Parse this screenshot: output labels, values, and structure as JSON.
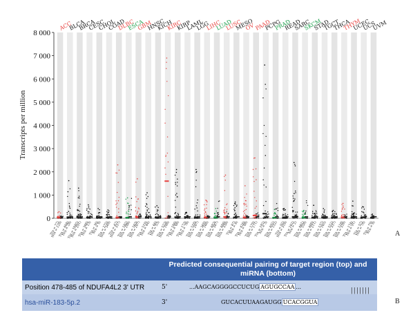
{
  "chart_data": {
    "type": "scatter",
    "title": "",
    "xlabel": "",
    "ylabel": "Transcripts per million",
    "ylim": [
      0,
      8000
    ],
    "yticks": [
      "0",
      "1 000",
      "2 000",
      "3 000",
      "4 000",
      "5 000",
      "6 000",
      "7 000",
      "8 000"
    ],
    "ytick_values": [
      0,
      1000,
      2000,
      3000,
      4000,
      5000,
      6000,
      7000,
      8000
    ],
    "grid": false,
    "colors": {
      "up": "#e8423f",
      "down": "#1a9e4a",
      "neutral": "#000000",
      "normal": "#111111"
    },
    "categories": [
      {
        "name": "ACC",
        "status": "up",
        "tumor_median": 40,
        "tumor_max": 280,
        "normal_max": 120,
        "tumor_label": "T(n = 77)",
        "normal_label": "N(n = 128)"
      },
      {
        "name": "BLCA",
        "status": "neutral",
        "tumor_median": 50,
        "tumor_max": 1620,
        "normal_max": 260,
        "tumor_label": "T(n = 404)",
        "normal_label": "N(n = 28)"
      },
      {
        "name": "BRCA",
        "status": "neutral",
        "tumor_median": 55,
        "tumor_max": 1300,
        "normal_max": 180,
        "tumor_label": "T(n = 1085)",
        "normal_label": "N(n = 291)"
      },
      {
        "name": "CESC",
        "status": "neutral",
        "tumor_median": 45,
        "tumor_max": 580,
        "normal_max": 260,
        "tumor_label": "T(n = 306)",
        "normal_label": "N(n = 13)"
      },
      {
        "name": "CHOL",
        "status": "neutral",
        "tumor_median": 30,
        "tumor_max": 420,
        "normal_max": 120,
        "tumor_label": "T(n = 36)",
        "normal_label": "N(n = 9)"
      },
      {
        "name": "COAD",
        "status": "neutral",
        "tumor_median": 40,
        "tumor_max": 360,
        "normal_max": 220,
        "tumor_label": "T(n = 275)",
        "normal_label": "N(n = 349)"
      },
      {
        "name": "DLBC",
        "status": "up",
        "tumor_median": 40,
        "tumor_max": 2300,
        "normal_max": 60,
        "tumor_label": "T(n = 47)",
        "normal_label": "N(n = 337)"
      },
      {
        "name": "ESCA",
        "status": "down",
        "tumor_median": 30,
        "tumor_max": 880,
        "normal_max": 900,
        "tumor_label": "T(n = 182)",
        "normal_label": "N(n = 286)"
      },
      {
        "name": "GBM",
        "status": "up",
        "tumor_median": 60,
        "tumor_max": 1700,
        "normal_max": 260,
        "tumor_label": "T(n = 163)",
        "normal_label": "N(n = 207)"
      },
      {
        "name": "HNSC",
        "status": "neutral",
        "tumor_median": 45,
        "tumor_max": 1100,
        "normal_max": 300,
        "tumor_label": "T(n = 519)",
        "normal_label": "N(n = 44)"
      },
      {
        "name": "KICH",
        "status": "neutral",
        "tumor_median": 40,
        "tumor_max": 540,
        "normal_max": 160,
        "tumor_label": "T(n = 66)",
        "normal_label": "N(n = 53)"
      },
      {
        "name": "KIRC",
        "status": "up",
        "tumor_median": 1600,
        "tumor_max": 6900,
        "normal_max": 140,
        "tumor_label": "T(n = 523)",
        "normal_label": "N(n = 100)"
      },
      {
        "name": "KIRP",
        "status": "neutral",
        "tumor_median": 50,
        "tumor_max": 2100,
        "normal_max": 180,
        "tumor_label": "T(n = 286)",
        "normal_label": "N(n = 60)"
      },
      {
        "name": "LAML",
        "status": "neutral",
        "tumor_median": 30,
        "tumor_max": 260,
        "normal_max": 120,
        "tumor_label": "T(n = 173)",
        "normal_label": "N(n = 70)"
      },
      {
        "name": "LGG",
        "status": "neutral",
        "tumor_median": 45,
        "tumor_max": 2100,
        "normal_max": 160,
        "tumor_label": "T(n = 518)",
        "normal_label": "N(n = 207)"
      },
      {
        "name": "LIHC",
        "status": "up",
        "tumor_median": 40,
        "tumor_max": 780,
        "normal_max": 120,
        "tumor_label": "T(n = 369)",
        "normal_label": "N(n = 160)"
      },
      {
        "name": "LUAD",
        "status": "down",
        "tumor_median": 40,
        "tumor_max": 420,
        "normal_max": 760,
        "tumor_label": "T(n = 483)",
        "normal_label": "N(n = 347)"
      },
      {
        "name": "LUSC",
        "status": "up",
        "tumor_median": 60,
        "tumor_max": 1860,
        "normal_max": 300,
        "tumor_label": "T(n = 486)",
        "normal_label": "N(n = 338)"
      },
      {
        "name": "MESO",
        "status": "neutral",
        "tumor_median": 40,
        "tumor_max": 700,
        "normal_max": 0,
        "tumor_label": "T(n = 87)",
        "normal_label": "N(n = 0)"
      },
      {
        "name": "OV",
        "status": "up",
        "tumor_median": 50,
        "tumor_max": 1400,
        "normal_max": 140,
        "tumor_label": "T(n = 426)",
        "normal_label": "N(n = 88)"
      },
      {
        "name": "PAAD",
        "status": "up",
        "tumor_median": 120,
        "tumor_max": 2600,
        "normal_max": 280,
        "tumor_label": "T(n = 179)",
        "normal_label": "N(n = 171)"
      },
      {
        "name": "PCPG",
        "status": "neutral",
        "tumor_median": 200,
        "tumor_max": 6600,
        "normal_max": 440,
        "tumor_label": "T(n = 182)",
        "normal_label": "N(n = 3)"
      },
      {
        "name": "PRAD",
        "status": "down",
        "tumor_median": 30,
        "tumor_max": 380,
        "normal_max": 720,
        "tumor_label": "T(n = 492)",
        "normal_label": "N(n = 152)"
      },
      {
        "name": "READ",
        "status": "neutral",
        "tumor_median": 40,
        "tumor_max": 420,
        "normal_max": 200,
        "tumor_label": "T(n = 92)",
        "normal_label": "N(n = 318)"
      },
      {
        "name": "SARC",
        "status": "neutral",
        "tumor_median": 60,
        "tumor_max": 2400,
        "normal_max": 300,
        "tumor_label": "T(n = 262)",
        "normal_label": "N(n = 2)"
      },
      {
        "name": "SKCM",
        "status": "down",
        "tumor_median": 40,
        "tumor_max": 340,
        "normal_max": 900,
        "tumor_label": "T(n = 461)",
        "normal_label": "N(n = 558)"
      },
      {
        "name": "STAD",
        "status": "neutral",
        "tumor_median": 40,
        "tumor_max": 560,
        "normal_max": 340,
        "tumor_label": "T(n = 408)",
        "normal_label": "N(n = 211)"
      },
      {
        "name": "TGCT",
        "status": "neutral",
        "tumor_median": 40,
        "tumor_max": 420,
        "normal_max": 240,
        "tumor_label": "T(n = 137)",
        "normal_label": "N(n = 165)"
      },
      {
        "name": "THCA",
        "status": "neutral",
        "tumor_median": 40,
        "tumor_max": 340,
        "normal_max": 220,
        "tumor_label": "T(n = 512)",
        "normal_label": "N(n = 337)"
      },
      {
        "name": "THYM",
        "status": "up",
        "tumor_median": 50,
        "tumor_max": 640,
        "normal_max": 200,
        "tumor_label": "T(n = 118)",
        "normal_label": "N(n = 339)"
      },
      {
        "name": "UCEC",
        "status": "neutral",
        "tumor_median": 40,
        "tumor_max": 740,
        "normal_max": 260,
        "tumor_label": "T(n = 174)",
        "normal_label": "N(n = 91)"
      },
      {
        "name": "UCS",
        "status": "neutral",
        "tumor_median": 40,
        "tumor_max": 500,
        "normal_max": 200,
        "tumor_label": "T(n = 57)",
        "normal_label": "N(n = 78)"
      },
      {
        "name": "UVM",
        "status": "neutral",
        "tumor_median": 30,
        "tumor_max": 180,
        "normal_max": 0,
        "tumor_label": "T(n = 79)",
        "normal_label": "N(n = 0)"
      }
    ]
  },
  "panel_a": "A",
  "panel_b": "B",
  "table": {
    "header_right": "Predicted consequential pairing of target region (top) and miRNA (bottom)",
    "row1": {
      "label": "Position 478-485 of NDUFA4L2 3' UTR",
      "prime": "5'",
      "seq_prefix": "...AAGCAGGGGCCUCUG",
      "seq_boxed": "AGUGCCAA",
      "seq_suffix": "..."
    },
    "pairing_bars": "|||||||",
    "row2": {
      "label": "hsa-miR-183-5p.2",
      "prime": "3'",
      "seq_prefix": "GUCACUUAAGAUGG",
      "seq_boxed": "UCACGGUA",
      "seq_suffix": ""
    }
  }
}
